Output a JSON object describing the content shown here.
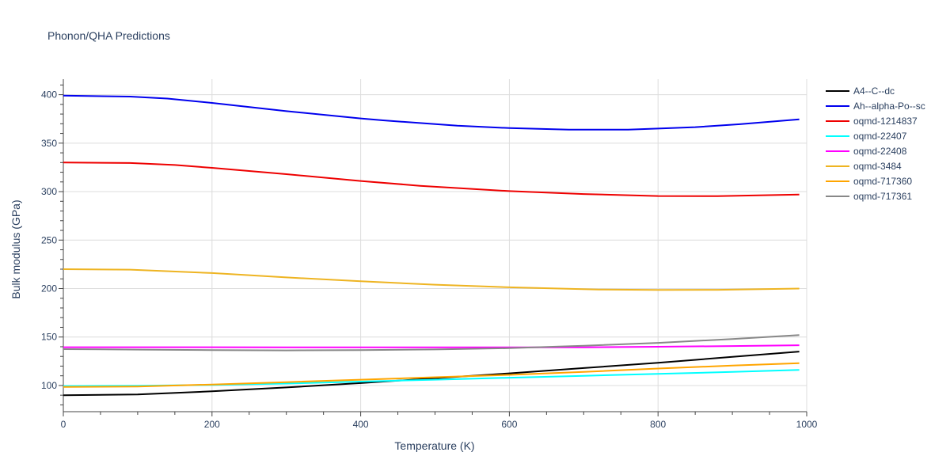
{
  "chart_data": {
    "type": "line",
    "title": "Phonon/QHA Predictions",
    "xlabel": "Temperature (K)",
    "ylabel": "Bulk modulus (GPa)",
    "xlim": [
      0,
      1000
    ],
    "ylim": [
      73,
      416
    ],
    "x_ticks": [
      0,
      200,
      400,
      600,
      800,
      1000
    ],
    "y_ticks": [
      100,
      150,
      200,
      250,
      300,
      350,
      400
    ],
    "x_tick_labels": [
      "0",
      "200",
      "400",
      "600",
      "800",
      "1000"
    ],
    "y_tick_labels": [
      "100",
      "150",
      "200",
      "250",
      "300",
      "350",
      "400"
    ],
    "grid": true,
    "legend_position": "top-right",
    "series": [
      {
        "name": "A4--C--dc",
        "color": "#000000",
        "x": [
          0,
          100,
          200,
          300,
          400,
          500,
          600,
          700,
          800,
          900,
          990
        ],
        "y": [
          90,
          90.8,
          94,
          98,
          102.5,
          107.5,
          112.5,
          118,
          123.5,
          129.5,
          135
        ]
      },
      {
        "name": "Ah--alpha-Po--sc",
        "color": "#0000ee",
        "x": [
          0,
          90,
          140,
          200,
          300,
          400,
          430,
          530,
          600,
          680,
          760,
          800,
          850,
          910,
          990
        ],
        "y": [
          399,
          398,
          396,
          391.5,
          383,
          375.5,
          373.5,
          368,
          365.5,
          364,
          364,
          365,
          366.5,
          369.5,
          374.5
        ]
      },
      {
        "name": "oqmd-1214837",
        "color": "#ee0000",
        "x": [
          0,
          90,
          150,
          200,
          300,
          400,
          480,
          600,
          700,
          800,
          880,
          990
        ],
        "y": [
          330,
          329.5,
          327.5,
          324.5,
          318,
          311,
          306,
          300.5,
          297.5,
          295.5,
          295.3,
          297
        ]
      },
      {
        "name": "oqmd-22407",
        "color": "#00ffff",
        "x": [
          0,
          100,
          200,
          300,
          400,
          500,
          600,
          700,
          800,
          900,
          990
        ],
        "y": [
          99.5,
          99.8,
          100.5,
          102,
          104,
          106,
          108,
          110,
          112,
          114,
          116
        ]
      },
      {
        "name": "oqmd-22408",
        "color": "#ff00ff",
        "x": [
          0,
          100,
          200,
          300,
          400,
          500,
          600,
          700,
          800,
          900,
          990
        ],
        "y": [
          139.5,
          139.5,
          139.5,
          139.3,
          139.3,
          139.3,
          139.3,
          139.4,
          140,
          140.7,
          141.5
        ]
      },
      {
        "name": "oqmd-3484",
        "color": "#eeb422",
        "x": [
          0,
          90,
          200,
          300,
          400,
          500,
          600,
          720,
          800,
          880,
          990
        ],
        "y": [
          220,
          219.5,
          216,
          211.5,
          207.5,
          204,
          201.3,
          199,
          198.5,
          198.7,
          200
        ]
      },
      {
        "name": "oqmd-717360",
        "color": "#ffa500",
        "x": [
          0,
          100,
          200,
          300,
          400,
          500,
          600,
          700,
          800,
          900,
          990
        ],
        "y": [
          98.5,
          99,
          101,
          103.5,
          106,
          108.5,
          111,
          114,
          117.5,
          120.5,
          123
        ]
      },
      {
        "name": "oqmd-717361",
        "color": "#888888",
        "x": [
          0,
          100,
          200,
          300,
          400,
          500,
          600,
          700,
          800,
          900,
          990
        ],
        "y": [
          137.5,
          137,
          136.5,
          136.2,
          136.5,
          137.2,
          138.5,
          141,
          144,
          148,
          152
        ]
      }
    ]
  }
}
